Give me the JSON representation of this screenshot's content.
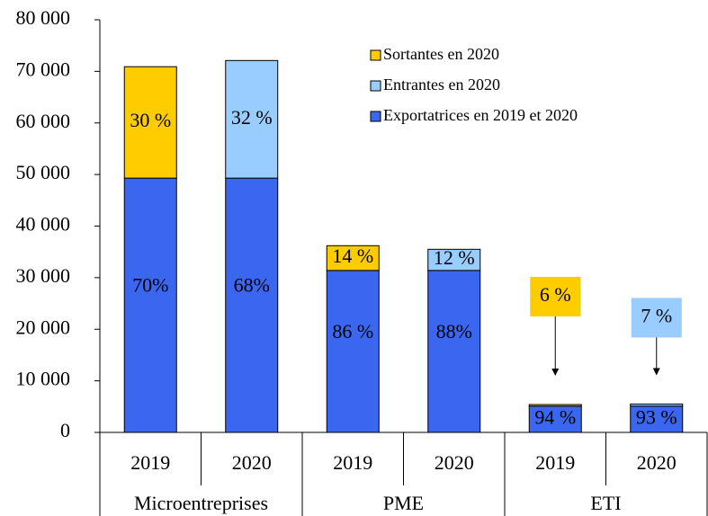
{
  "chart_data": {
    "type": "stacked-bar",
    "categories": [
      "2019",
      "2020",
      "2019",
      "2020",
      "2019",
      "2020"
    ],
    "groups": [
      "Microentreprises",
      "PME",
      "ETI"
    ],
    "series": [
      {
        "name": "Exportatrices en 2019 et 2020",
        "color": "#3a66f0",
        "values": [
          49300,
          49300,
          31400,
          31400,
          5100,
          5100
        ],
        "value_labels": [
          "70%",
          "68%",
          "86 %",
          "88%",
          "94 %",
          "93 %"
        ]
      },
      {
        "name": "Sortantes en 2020",
        "color": "#ffcc00",
        "values": [
          21600,
          null,
          4800,
          null,
          300,
          null
        ],
        "value_labels": [
          "30 %",
          null,
          "14 %",
          null,
          "6 %",
          null
        ]
      },
      {
        "name": "Entrantes en 2020",
        "color": "#99ccff",
        "values": [
          null,
          22800,
          null,
          4100,
          null,
          400
        ],
        "value_labels": [
          null,
          "32 %",
          null,
          "12 %",
          null,
          "7 %"
        ]
      }
    ],
    "ylim": [
      0,
      80000
    ],
    "yticks": [
      0,
      {
        "value": 10000,
        "label": "10 000"
      },
      {
        "value": 20000,
        "label": "20 000"
      },
      {
        "value": 30000,
        "label": "30 000"
      },
      {
        "value": 40000,
        "label": "40 000"
      },
      {
        "value": 50000,
        "label": "50 000"
      },
      {
        "value": 60000,
        "label": "60 000"
      },
      {
        "value": 70000,
        "label": "70 000"
      },
      {
        "value": 80000,
        "label": "80 000"
      }
    ],
    "legend": "top-right"
  }
}
